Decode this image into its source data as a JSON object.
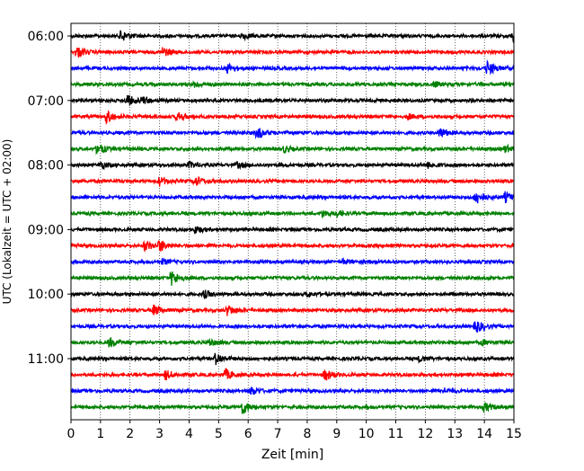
{
  "chart_data": {
    "type": "line",
    "title": "",
    "xlabel": "Zeit  [min]",
    "ylabel": "UTC (Lokalzeit = UTC + 02:00)",
    "xlim": [
      0,
      15
    ],
    "x_ticks": [
      "0",
      "1",
      "2",
      "3",
      "4",
      "5",
      "6",
      "7",
      "8",
      "9",
      "10",
      "11",
      "12",
      "13",
      "14",
      "15"
    ],
    "y_tick_labels": [
      "06:00",
      "07:00",
      "08:00",
      "09:00",
      "10:00",
      "11:00"
    ],
    "grid": "vertical dotted",
    "trace_interval_minutes": 15,
    "start_time": "06:00",
    "color_cycle": [
      "#000000",
      "#ff0000",
      "#0000ff",
      "#008000"
    ],
    "series": [
      {
        "time": "06:00",
        "events": [
          {
            "x": 1.7,
            "amp": 2.0
          },
          {
            "x": 5.8,
            "amp": 1.1
          },
          {
            "x": 15.0,
            "amp": 3.2
          }
        ]
      },
      {
        "time": "06:15",
        "events": [
          {
            "x": 0.2,
            "amp": 1.8
          },
          {
            "x": 3.1,
            "amp": 1.6
          }
        ]
      },
      {
        "time": "06:30",
        "events": [
          {
            "x": 5.3,
            "amp": 1.5
          },
          {
            "x": 14.1,
            "amp": 2.4
          }
        ]
      },
      {
        "time": "06:45",
        "events": [
          {
            "x": 4.2,
            "amp": 0.9
          },
          {
            "x": 12.3,
            "amp": 0.9
          }
        ]
      },
      {
        "time": "07:00",
        "events": [
          {
            "x": 1.9,
            "amp": 1.9
          },
          {
            "x": 2.4,
            "amp": 1.2
          }
        ]
      },
      {
        "time": "07:15",
        "events": [
          {
            "x": 1.2,
            "amp": 2.2
          },
          {
            "x": 3.6,
            "amp": 1.5
          },
          {
            "x": 11.4,
            "amp": 0.9
          }
        ]
      },
      {
        "time": "07:30",
        "events": [
          {
            "x": 6.3,
            "amp": 2.0
          },
          {
            "x": 12.5,
            "amp": 1.7
          }
        ]
      },
      {
        "time": "07:45",
        "events": [
          {
            "x": 0.9,
            "amp": 1.9
          },
          {
            "x": 7.2,
            "amp": 1.1
          },
          {
            "x": 14.7,
            "amp": 1.1
          }
        ]
      },
      {
        "time": "08:00",
        "events": [
          {
            "x": 1.0,
            "amp": 1.2
          },
          {
            "x": 4.0,
            "amp": 1.0
          },
          {
            "x": 5.6,
            "amp": 1.0
          },
          {
            "x": 12.1,
            "amp": 1.0
          }
        ]
      },
      {
        "time": "08:15",
        "events": [
          {
            "x": 3.0,
            "amp": 1.4
          },
          {
            "x": 4.2,
            "amp": 1.7
          }
        ]
      },
      {
        "time": "08:30",
        "events": [
          {
            "x": 13.7,
            "amp": 2.5
          },
          {
            "x": 14.7,
            "amp": 1.6
          }
        ]
      },
      {
        "time": "08:45",
        "events": [
          {
            "x": 8.5,
            "amp": 1.2
          },
          {
            "x": 9.0,
            "amp": 0.9
          }
        ]
      },
      {
        "time": "09:00",
        "events": [
          {
            "x": 4.2,
            "amp": 1.3
          }
        ]
      },
      {
        "time": "09:15",
        "events": [
          {
            "x": 2.5,
            "amp": 1.7
          },
          {
            "x": 3.0,
            "amp": 1.9
          }
        ]
      },
      {
        "time": "09:30",
        "events": [
          {
            "x": 3.1,
            "amp": 0.8
          },
          {
            "x": 9.2,
            "amp": 0.8
          }
        ]
      },
      {
        "time": "09:45",
        "events": [
          {
            "x": 3.4,
            "amp": 2.6
          }
        ]
      },
      {
        "time": "10:00",
        "events": [
          {
            "x": 4.5,
            "amp": 1.3
          },
          {
            "x": 8.0,
            "amp": 0.8
          }
        ]
      },
      {
        "time": "10:15",
        "events": [
          {
            "x": 2.8,
            "amp": 1.7
          },
          {
            "x": 5.3,
            "amp": 1.8
          }
        ]
      },
      {
        "time": "10:30",
        "events": [
          {
            "x": 13.7,
            "amp": 2.3
          }
        ]
      },
      {
        "time": "10:45",
        "events": [
          {
            "x": 1.3,
            "amp": 1.7
          },
          {
            "x": 4.7,
            "amp": 1.1
          },
          {
            "x": 13.9,
            "amp": 0.9
          }
        ]
      },
      {
        "time": "11:00",
        "events": [
          {
            "x": 4.9,
            "amp": 2.0
          },
          {
            "x": 11.8,
            "amp": 0.9
          }
        ]
      },
      {
        "time": "11:15",
        "events": [
          {
            "x": 3.2,
            "amp": 1.6
          },
          {
            "x": 5.2,
            "amp": 2.0
          },
          {
            "x": 8.6,
            "amp": 1.9
          }
        ]
      },
      {
        "time": "11:30",
        "events": [
          {
            "x": 6.1,
            "amp": 1.3
          },
          {
            "x": 12.6,
            "amp": 0.9
          }
        ]
      },
      {
        "time": "11:45",
        "events": [
          {
            "x": 5.8,
            "amp": 2.4
          },
          {
            "x": 14.0,
            "amp": 1.4
          }
        ]
      }
    ]
  }
}
